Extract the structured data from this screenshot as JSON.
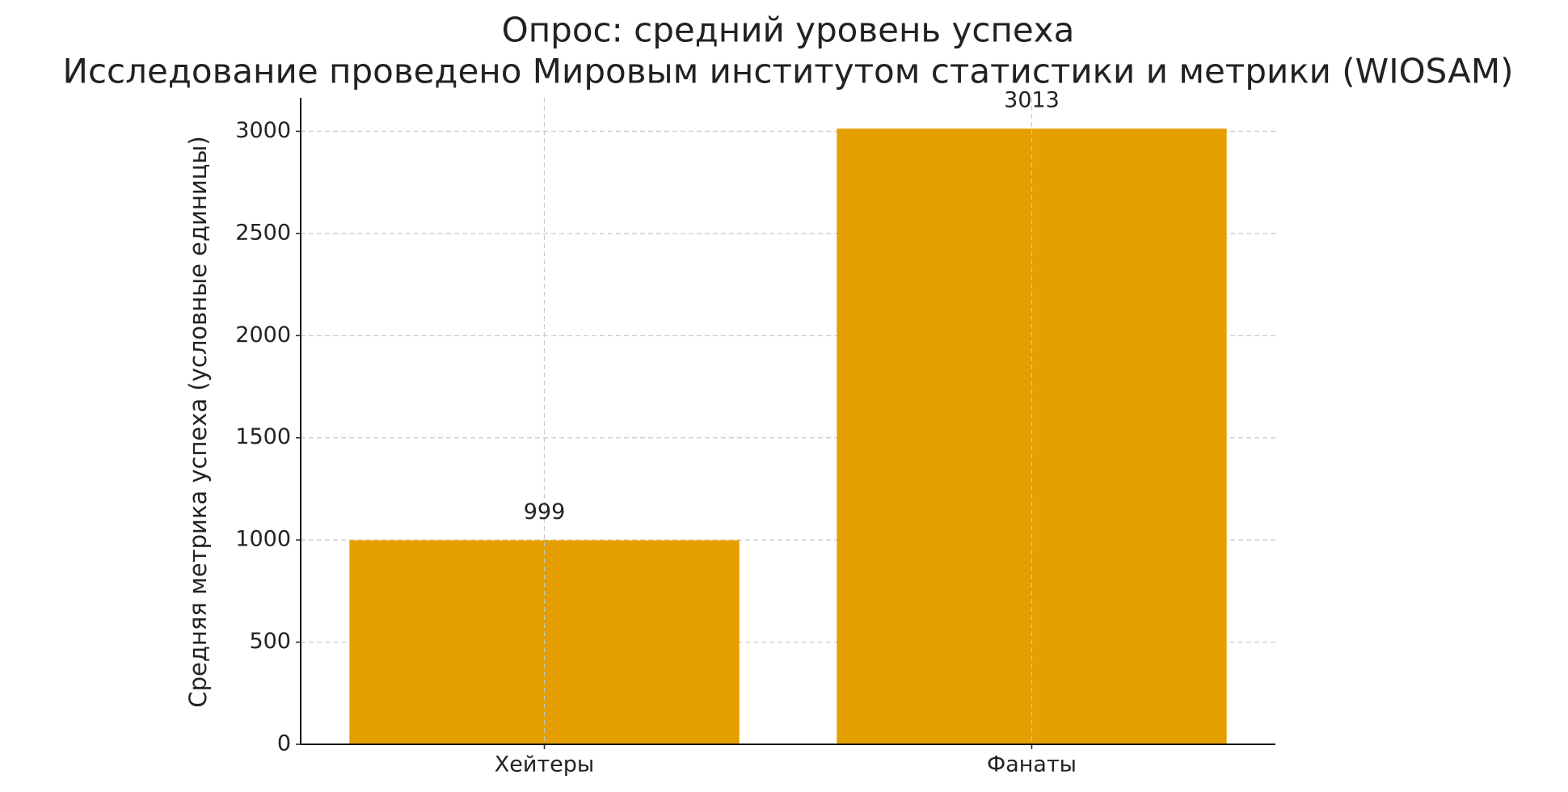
{
  "chart_data": {
    "type": "bar",
    "title": "Опрос: средний уровень успеха",
    "subtitle": "Исследование проведено Мировым институтом статистики и метрики (WIOSAM)",
    "y_label": "Средняя метрика успеха (условные единицы)",
    "categories": [
      "Хейтеры",
      "Фанаты"
    ],
    "values": [
      999,
      3013
    ],
    "color": "#e69f00",
    "ylim": [
      0,
      3164
    ],
    "yticks": [
      0,
      500,
      1000,
      1500,
      2000,
      2500,
      3000
    ],
    "grid": true
  }
}
